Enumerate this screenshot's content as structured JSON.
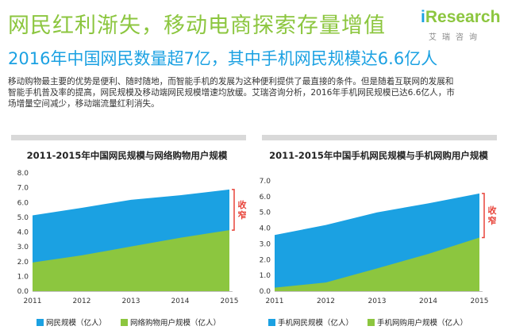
{
  "header": {
    "title": "网民红利渐失，移动电商探索存量增值",
    "subtitle": "2016年中国网民数量超7亿，其中手机网民规模达6.6亿人"
  },
  "logo": {
    "prefix": "i",
    "name": "Research",
    "sub": "艾瑞咨询"
  },
  "body": {
    "lines": [
      "移动购物最主要的优势是便利、随时随地，而智能手机的发展为这种便利提供了最直接的条件。但是随着互联网的发展和",
      "智能手机普及率的提高，网民规模及移动端网民规模增速均放缓。艾瑞咨询分析，2016年手机网民规模已达6.6亿人，市",
      "场增量空间减少，移动端流量红利消失。"
    ]
  },
  "colors": {
    "blue": "#1ba1e2",
    "green": "#8cc63f",
    "accent_red": "#e8443a",
    "rule": "#d9d9d9"
  },
  "chart_data": [
    {
      "type": "area",
      "title": "2011-2015年中国网民规模与网络购物用户规模",
      "x": [
        "2011",
        "2012",
        "2013",
        "2014",
        "2015"
      ],
      "ylim": [
        0,
        8
      ],
      "yticks": [
        "0.0",
        "1.0",
        "2.0",
        "3.0",
        "4.0",
        "5.0",
        "6.0",
        "7.0",
        "8.0"
      ],
      "series": [
        {
          "name": "网民规模（亿人）",
          "color": "#1ba1e2",
          "values": [
            5.13,
            5.64,
            6.18,
            6.49,
            6.88
          ]
        },
        {
          "name": "网络购物用户规模（亿人）",
          "color": "#8cc63f",
          "values": [
            1.94,
            2.42,
            3.02,
            3.61,
            4.13
          ]
        }
      ],
      "annotation": "收窄"
    },
    {
      "type": "area",
      "title": "2011-2015年中国手机网民规模与手机网购用户规模",
      "x": [
        "2011",
        "2012",
        "2013",
        "2014",
        "2015"
      ],
      "ylim": [
        0,
        7
      ],
      "yticks": [
        "0.0",
        "1.0",
        "2.0",
        "3.0",
        "4.0",
        "5.0",
        "6.0",
        "7.0"
      ],
      "series": [
        {
          "name": "手机网民规模（亿人）",
          "color": "#1ba1e2",
          "values": [
            3.56,
            4.2,
            5.0,
            5.57,
            6.2
          ]
        },
        {
          "name": "手机网购用户规模（亿人）",
          "color": "#8cc63f",
          "values": [
            0.22,
            0.55,
            1.44,
            2.36,
            3.4
          ]
        }
      ],
      "annotation": "收窄"
    }
  ]
}
